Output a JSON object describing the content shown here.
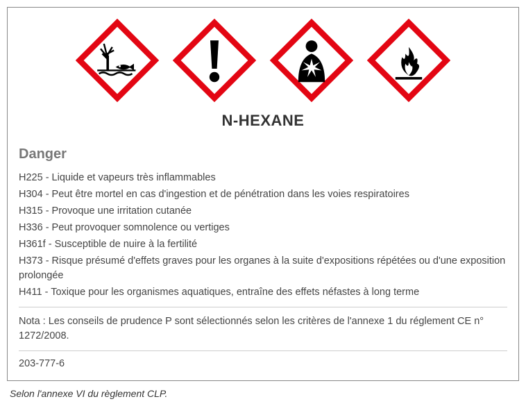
{
  "substance_title": "N-HEXANE",
  "signal_word": "Danger",
  "pictograms": [
    {
      "name": "environment-hazard-icon",
      "type": "environment"
    },
    {
      "name": "exclamation-hazard-icon",
      "type": "exclamation"
    },
    {
      "name": "health-hazard-icon",
      "type": "health"
    },
    {
      "name": "flammable-hazard-icon",
      "type": "flame"
    }
  ],
  "h_statements": [
    "H225 - Liquide et vapeurs très inflammables",
    "H304 - Peut être mortel en cas d'ingestion et de pénétration dans les voies respiratoires",
    "H315 - Provoque une irritation cutanée",
    "H336 - Peut provoquer somnolence ou vertiges",
    "H361f - Susceptible de nuire à la fertilité",
    "H373 - Risque présumé d'effets graves pour les organes à la suite d'expositions répétées ou d'une exposition prolongée",
    "H411 - Toxique pour les organismes aquatiques, entraîne des effets néfastes à long terme"
  ],
  "nota_text": "Nota : Les conseils de prudence P sont sélectionnés selon les critères de l'annexe 1 du réglement CE n° 1272/2008.",
  "ec_number": "203-777-6",
  "footnote": "Selon l'annexe VI du règlement CLP.",
  "colors": {
    "border": "#888888",
    "text": "#444444",
    "signal": "#777777",
    "picto_border": "#e30613",
    "picto_symbol": "#000000",
    "background": "#ffffff"
  },
  "typography": {
    "title_fontsize": 22,
    "signal_fontsize": 20,
    "body_fontsize": 14.5,
    "footnote_fontsize": 14,
    "font_family": "Arial"
  }
}
